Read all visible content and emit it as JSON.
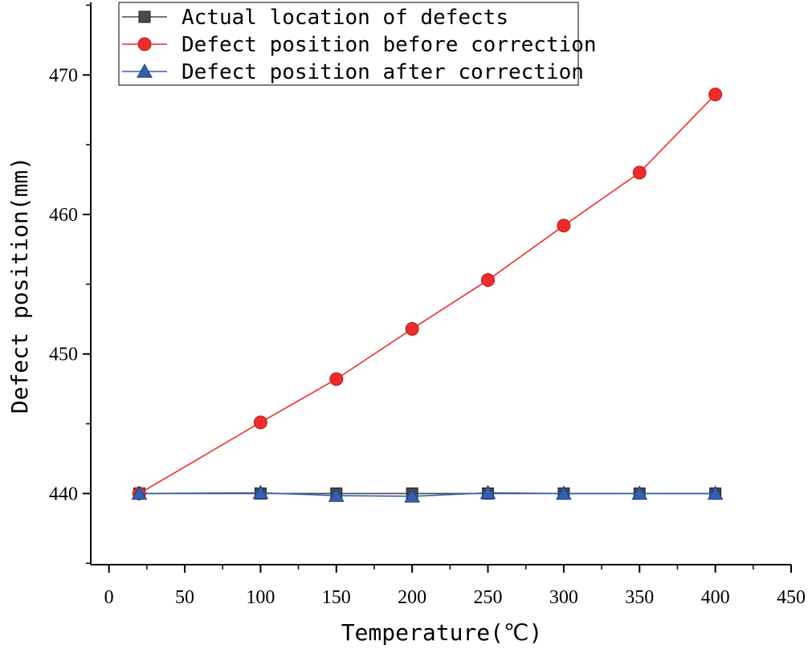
{
  "chart_data": {
    "type": "line",
    "title": "",
    "xlabel": "Temperature(℃)",
    "ylabel": "Defect position(mm)",
    "xlim": [
      -12,
      450
    ],
    "ylim": [
      434.9,
      475.2
    ],
    "xticks": [
      0,
      50,
      100,
      150,
      200,
      250,
      300,
      350,
      400,
      450
    ],
    "yticks": [
      440,
      450,
      460,
      470
    ],
    "x": [
      20,
      100,
      150,
      200,
      250,
      300,
      350,
      400
    ],
    "legend_position": "top-left",
    "series": [
      {
        "name": "Actual location of defects",
        "marker": "square",
        "color": "#4a4a4a",
        "values": [
          440,
          440,
          440,
          440,
          440,
          440,
          440,
          440
        ]
      },
      {
        "name": "Defect position before correction",
        "marker": "circle",
        "color": "#ee2c2c",
        "values": [
          440,
          445.1,
          448.2,
          451.8,
          455.3,
          459.2,
          463.0,
          468.6
        ]
      },
      {
        "name": "Defect position after correction",
        "marker": "triangle",
        "color": "#3560b0",
        "values": [
          440,
          440.05,
          439.85,
          439.8,
          440.05,
          440,
          440,
          440
        ]
      }
    ]
  }
}
